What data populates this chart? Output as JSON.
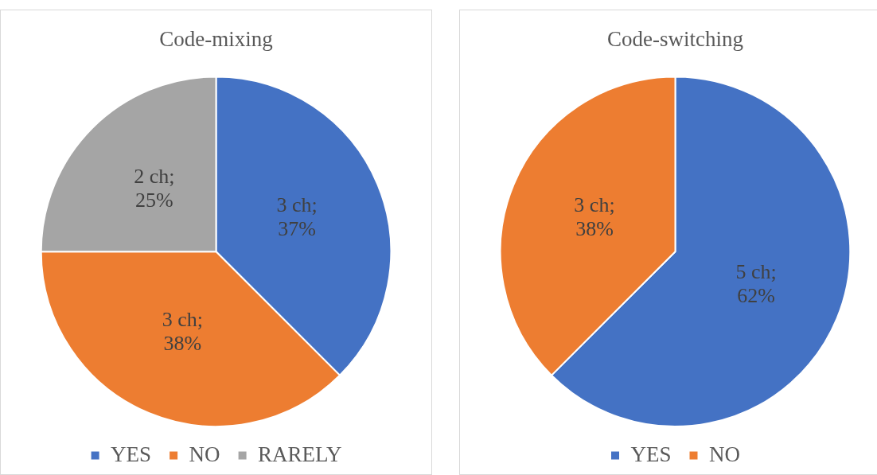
{
  "chart_data": [
    {
      "type": "pie",
      "title": "Code-mixing",
      "categories": [
        "YES",
        "NO",
        "RARELY"
      ],
      "values": [
        3,
        3,
        2
      ],
      "colors": [
        "#4472c4",
        "#ed7d31",
        "#a5a5a5"
      ],
      "value_labels": [
        "3 ch; 37%",
        "3 ch; 38%",
        "2 ch; 25%"
      ],
      "legend": "bottom"
    },
    {
      "type": "pie",
      "title": "Code-switching",
      "categories": [
        "YES",
        "NO"
      ],
      "values": [
        5,
        3
      ],
      "colors": [
        "#4472c4",
        "#ed7d31"
      ],
      "value_labels": [
        "5 ch; 62%",
        "3 ch; 38%"
      ],
      "legend": "bottom"
    }
  ]
}
